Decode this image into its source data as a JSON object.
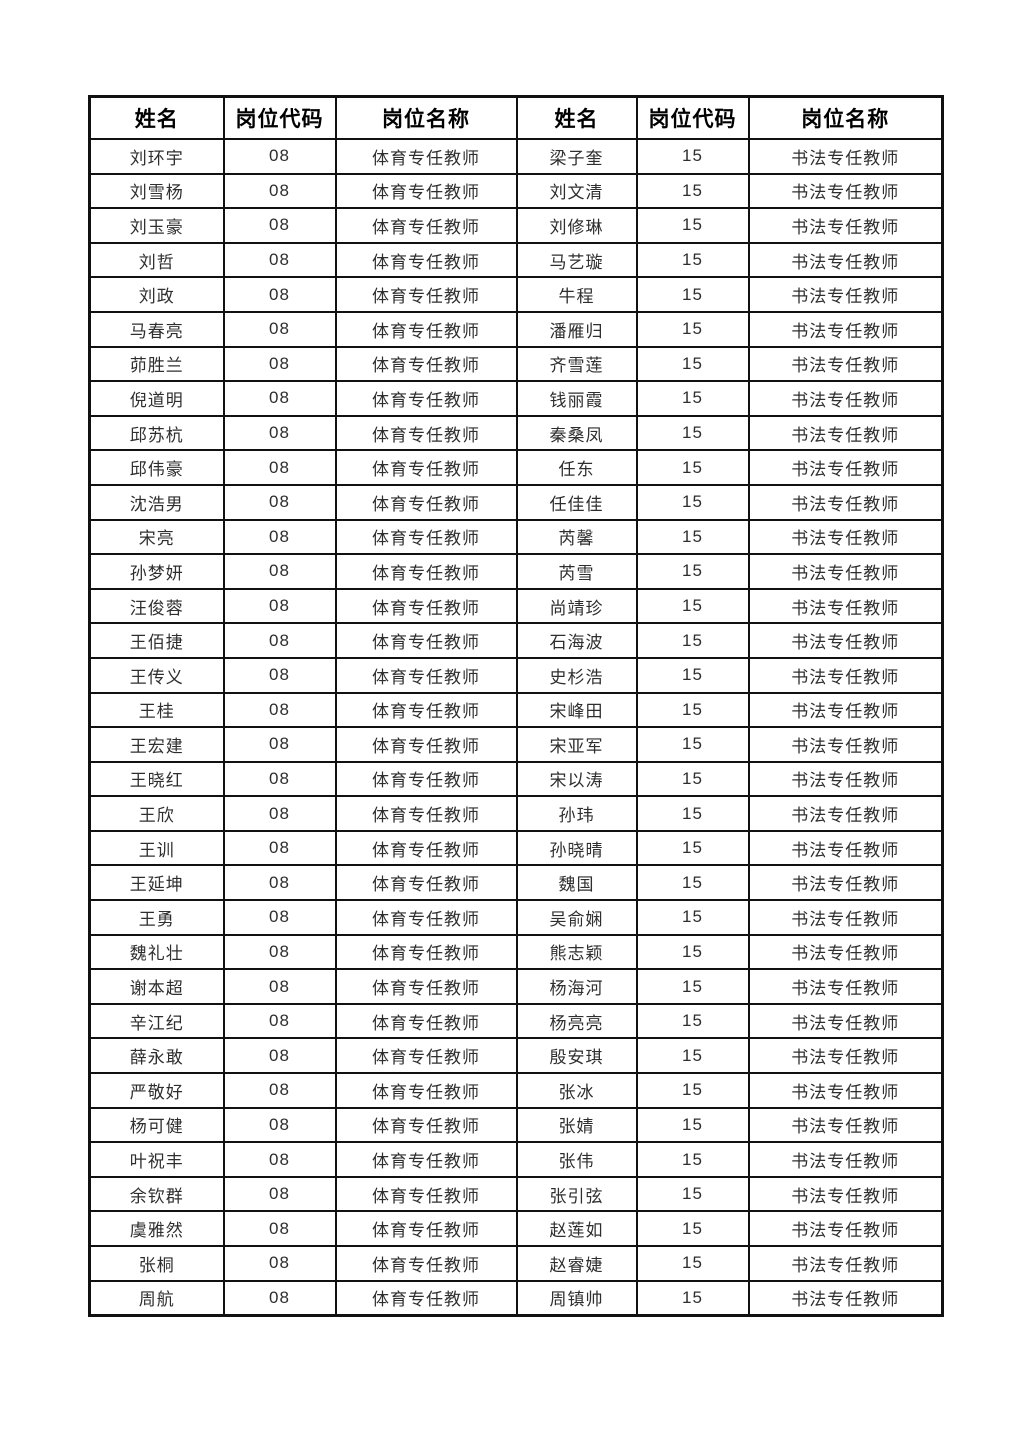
{
  "document": {
    "background": "#ffffff"
  },
  "table": {
    "headers": [
      "姓名",
      "岗位代码",
      "岗位名称",
      "姓名",
      "岗位代码",
      "岗位名称"
    ],
    "left_group": {
      "code": "08",
      "position_title": "体育专任教师",
      "names": [
        "刘环宇",
        "刘雪杨",
        "刘玉豪",
        "刘哲",
        "刘政",
        "马春亮",
        "茆胜兰",
        "倪道明",
        "邱苏杭",
        "邱伟豪",
        "沈浩男",
        "宋亮",
        "孙梦妍",
        "汪俊蓉",
        "王佰捷",
        "王传义",
        "王桂",
        "王宏建",
        "王晓红",
        "王欣",
        "王训",
        "王延坤",
        "王勇",
        "魏礼壮",
        "谢本超",
        "辛江纪",
        "薛永敢",
        "严敬好",
        "杨可健",
        "叶祝丰",
        "余钦群",
        "虞雅然",
        "张桐",
        "周航"
      ]
    },
    "right_group": {
      "code": "15",
      "position_title": "书法专任教师",
      "names": [
        "梁子奎",
        "刘文清",
        "刘修琳",
        "马艺璇",
        "牛程",
        "潘雁归",
        "齐雪莲",
        "钱丽霞",
        "秦桑凤",
        "任东",
        "任佳佳",
        "芮馨",
        "芮雪",
        "尚靖珍",
        "石海波",
        "史杉浩",
        "宋峰田",
        "宋亚军",
        "宋以涛",
        "孙玮",
        "孙晓晴",
        "魏国",
        "吴俞娴",
        "熊志颖",
        "杨海河",
        "杨亮亮",
        "殷安琪",
        "张冰",
        "张婧",
        "张伟",
        "张引弦",
        "赵莲如",
        "赵睿婕",
        "周镇帅"
      ]
    },
    "row_count": 34,
    "colors": {
      "border": "#111111",
      "header_text": "#000000",
      "body_text": "#2e2e2e",
      "page_background": "#ffffff"
    }
  }
}
